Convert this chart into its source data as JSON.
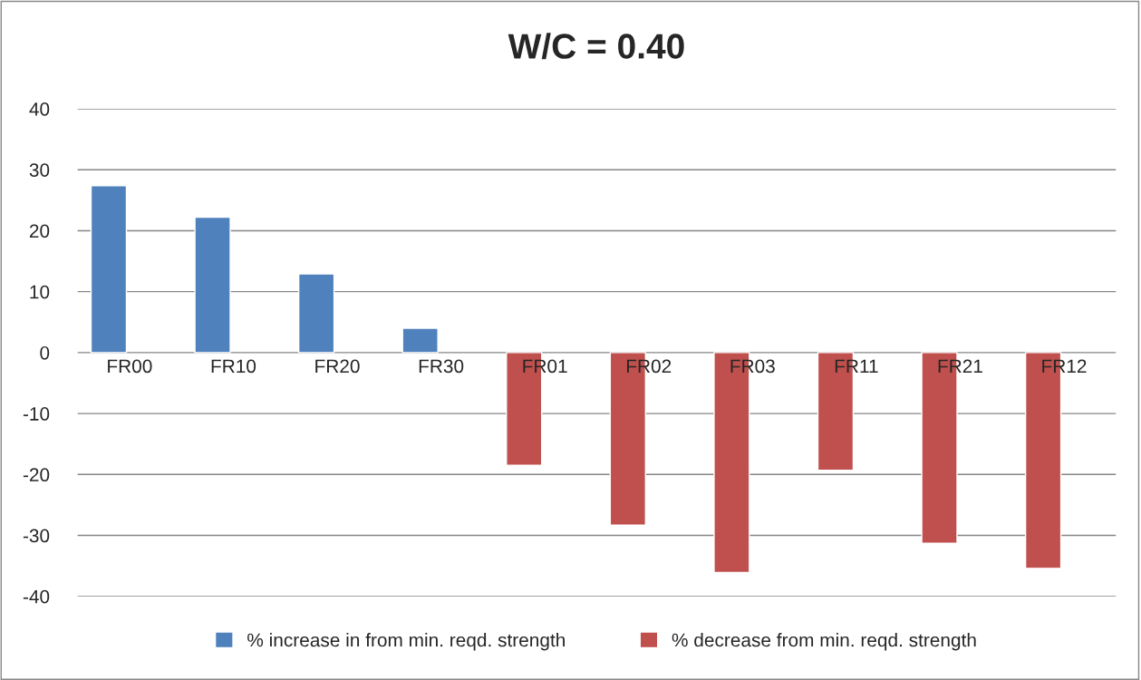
{
  "chart_data": {
    "type": "bar",
    "title": "W/C = 0.40",
    "categories": [
      "FR00",
      "FR10",
      "FR20",
      "FR30",
      "FR01",
      "FR02",
      "FR03",
      "FR11",
      "FR21",
      "FR12"
    ],
    "series": [
      {
        "name": "% increase in from min. reqd. strength",
        "color": "#4f81bd",
        "values": [
          27.4,
          22.2,
          12.9,
          4.0,
          null,
          null,
          null,
          null,
          null,
          null
        ]
      },
      {
        "name": "% decrease from min. reqd. strength",
        "color": "#c0504d",
        "values": [
          null,
          null,
          null,
          null,
          -18.5,
          -28.3,
          -36.1,
          -19.3,
          -31.3,
          -35.4
        ]
      }
    ],
    "ylim": [
      -40,
      40
    ],
    "yticks": [
      -40,
      -30,
      -20,
      -10,
      0,
      10,
      20,
      30,
      40
    ],
    "grid": "y",
    "legend": "bottom"
  }
}
